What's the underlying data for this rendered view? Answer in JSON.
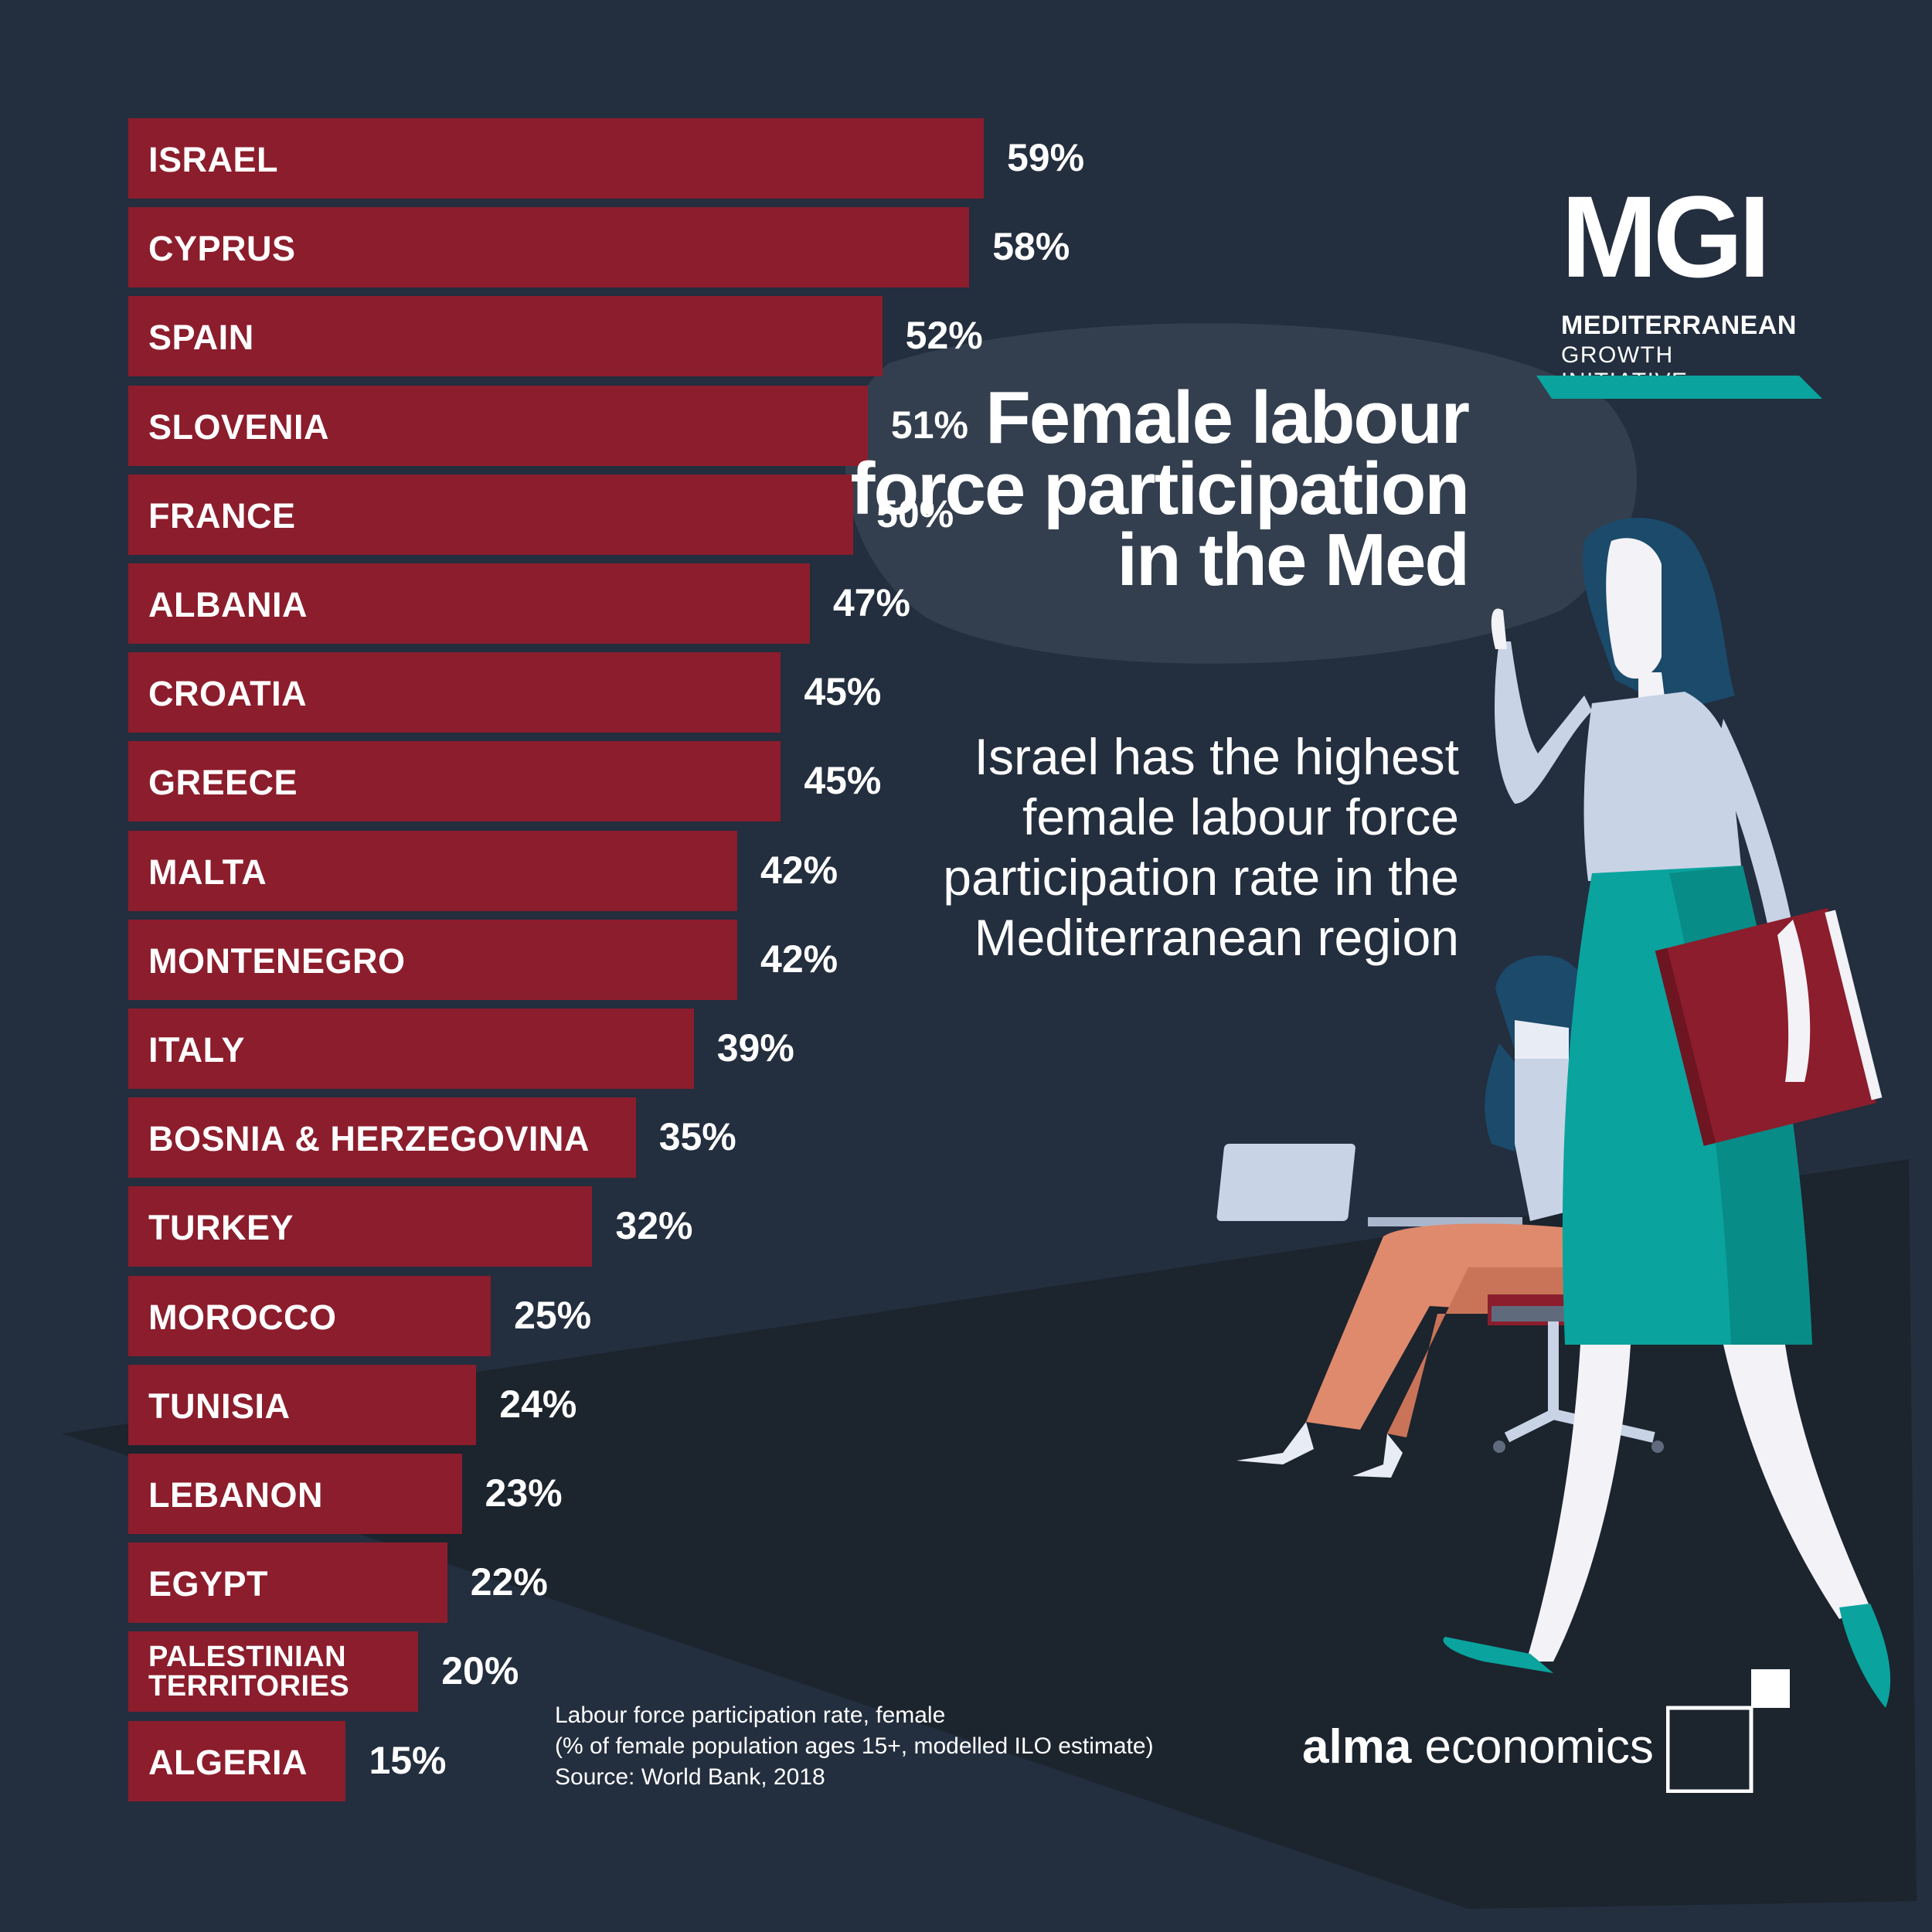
{
  "title": "Female labour force participation in the Med",
  "subtitle": "Israel has the highest female labour force participation rate in the Mediterranean region",
  "footnote": {
    "line1": "Labour force participation rate, female",
    "line2": "(% of female population ages 15+, modelled ILO estimate)",
    "line3": "Source: World Bank, 2018"
  },
  "logo": {
    "mark": "MGI",
    "line1": "MEDITERRANEAN",
    "line2": "GROWTH INITIATIVE"
  },
  "brand": {
    "bold": "alma",
    "rest": " economics"
  },
  "colors": {
    "background": "#232e3e",
    "bar": "#8c1d2c",
    "accent": "#0aa39e",
    "text": "#ffffff"
  },
  "chart_data": {
    "type": "bar",
    "orientation": "horizontal",
    "title": "Female labour force participation in the Med",
    "categories": [
      "ISRAEL",
      "CYPRUS",
      "SPAIN",
      "SLOVENIA",
      "FRANCE",
      "ALBANIA",
      "CROATIA",
      "GREECE",
      "MALTA",
      "MONTENEGRO",
      "ITALY",
      "BOSNIA & HERZEGOVINA",
      "TURKEY",
      "MOROCCO",
      "TUNISIA",
      "LEBANON",
      "EGYPT",
      "PALESTINIAN TERRITORIES",
      "ALGERIA"
    ],
    "values": [
      59,
      58,
      52,
      51,
      50,
      47,
      45,
      45,
      42,
      42,
      39,
      35,
      32,
      25,
      24,
      23,
      22,
      20,
      15
    ],
    "value_labels": [
      "59%",
      "58%",
      "52%",
      "51%",
      "50%",
      "47%",
      "45%",
      "45%",
      "42%",
      "42%",
      "39%",
      "35%",
      "32%",
      "25%",
      "24%",
      "23%",
      "22%",
      "20%",
      "15%"
    ],
    "unit": "%",
    "xlim": [
      0,
      59
    ],
    "grid": false,
    "legend": "none"
  }
}
